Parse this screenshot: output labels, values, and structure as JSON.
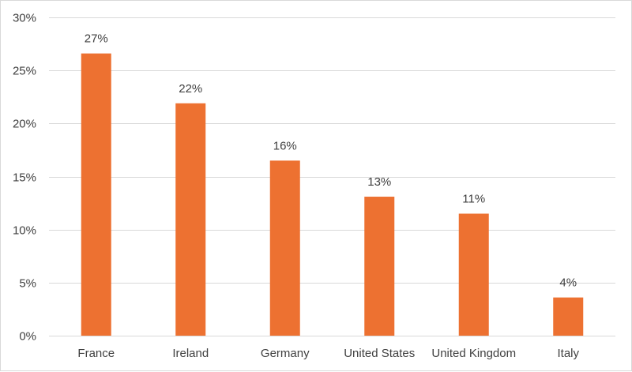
{
  "chart_data": {
    "type": "bar",
    "categories": [
      "France",
      "Ireland",
      "Germany",
      "United States",
      "United Kingdom",
      "Italy"
    ],
    "values": [
      26.6,
      21.9,
      16.5,
      13.1,
      11.5,
      3.6
    ],
    "data_labels": [
      "27%",
      "22%",
      "16%",
      "13%",
      "11%",
      "4%"
    ],
    "ylim": [
      0,
      30
    ],
    "yticks": [
      0,
      5,
      10,
      15,
      20,
      25,
      30
    ],
    "ytick_labels": [
      "0%",
      "5%",
      "10%",
      "15%",
      "20%",
      "25%",
      "30%"
    ],
    "grid": true,
    "bar_color": "#ED7131",
    "title": "",
    "xlabel": "",
    "ylabel": ""
  }
}
